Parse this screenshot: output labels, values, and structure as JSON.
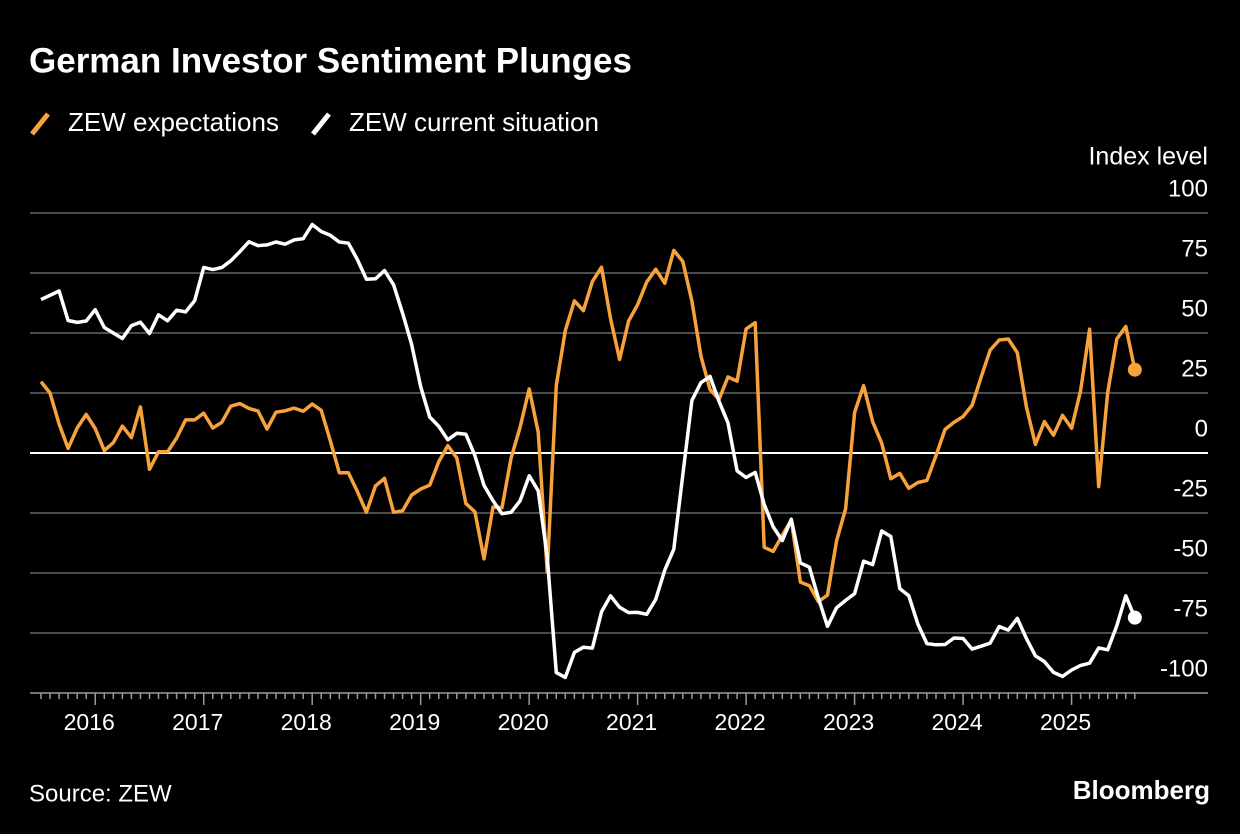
{
  "chart_data": {
    "type": "line",
    "title": "German Investor Sentiment Plunges",
    "ylabel": "Index level",
    "source": "Source: ZEW",
    "brand": "Bloomberg",
    "categories": [
      null,
      null,
      null,
      null,
      null,
      null,
      "2016",
      null,
      null,
      null,
      null,
      null,
      null,
      null,
      null,
      null,
      null,
      null,
      "2017",
      null,
      null,
      null,
      null,
      null,
      null,
      null,
      null,
      null,
      null,
      null,
      "2018",
      null,
      null,
      null,
      null,
      null,
      null,
      null,
      null,
      null,
      null,
      null,
      "2019",
      null,
      null,
      null,
      null,
      null,
      null,
      null,
      null,
      null,
      null,
      null,
      "2020",
      null,
      null,
      null,
      null,
      null,
      null,
      null,
      null,
      null,
      null,
      null,
      "2021",
      null,
      null,
      null,
      null,
      null,
      null,
      null,
      null,
      null,
      null,
      null,
      "2022",
      null,
      null,
      null,
      null,
      null,
      null,
      null,
      null,
      null,
      null,
      null,
      "2023",
      null,
      null,
      null,
      null,
      null,
      null,
      null,
      null,
      null,
      null,
      null,
      "2024",
      null,
      null,
      null,
      null,
      null,
      null,
      null,
      null,
      null,
      null,
      null,
      "2025",
      null,
      null,
      null,
      null,
      null,
      null,
      null
    ],
    "series": [
      {
        "name": "ZEW expectations",
        "color": "#f7a23a",
        "values": [
          29.7,
          25.0,
          12.1,
          1.9,
          10.4,
          16.1,
          10.2,
          1.0,
          4.3,
          11.2,
          6.4,
          19.2,
          -6.8,
          0.5,
          0.5,
          6.2,
          13.8,
          13.8,
          16.6,
          10.4,
          12.8,
          19.5,
          20.6,
          18.6,
          17.5,
          10.0,
          17.0,
          17.6,
          18.7,
          17.4,
          20.4,
          17.8,
          5.1,
          -8.2,
          -8.2,
          -16.1,
          -24.7,
          -13.7,
          -10.6,
          -24.7,
          -24.1,
          -17.5,
          -15.0,
          -13.4,
          -3.6,
          3.1,
          -2.1,
          -21.1,
          -24.5,
          -44.1,
          -22.5,
          -22.8,
          -2.1,
          10.7,
          26.7,
          8.7,
          -49.5,
          28.2,
          51.0,
          63.4,
          59.3,
          71.5,
          77.4,
          56.1,
          39.0,
          55.0,
          61.8,
          71.2,
          76.6,
          70.7,
          84.4,
          79.8,
          63.3,
          40.4,
          26.5,
          22.3,
          31.7,
          29.9,
          51.7,
          54.3,
          -39.3,
          -41.0,
          -34.3,
          -28.0,
          -53.8,
          -55.3,
          -61.9,
          -59.2,
          -36.7,
          -23.3,
          16.9,
          28.1,
          13.0,
          4.1,
          -10.7,
          -8.5,
          -14.7,
          -12.3,
          -11.4,
          -1.1,
          9.8,
          12.8,
          15.2,
          19.9,
          31.7,
          42.9,
          47.1,
          47.5,
          41.8,
          19.2,
          3.6,
          13.1,
          7.4,
          15.7,
          10.3,
          26.0,
          51.6,
          -14.0,
          25.2,
          47.5,
          52.7,
          34.7
        ]
      },
      {
        "name": "ZEW current situation",
        "color": "#ffffff",
        "values": [
          63.9,
          65.7,
          67.5,
          55.2,
          54.4,
          55.0,
          59.7,
          52.3,
          50.0,
          47.7,
          53.1,
          54.5,
          49.8,
          57.6,
          55.1,
          59.5,
          58.8,
          63.5,
          77.3,
          76.4,
          77.3,
          80.1,
          83.9,
          88.0,
          86.4,
          86.7,
          87.9,
          87.0,
          88.8,
          89.3,
          95.2,
          92.3,
          90.7,
          87.9,
          87.4,
          80.6,
          72.4,
          72.6,
          76.0,
          70.1,
          58.2,
          45.3,
          27.6,
          15.0,
          11.1,
          5.5,
          8.2,
          7.8,
          -1.1,
          -13.5,
          -19.9,
          -25.3,
          -24.7,
          -19.9,
          -9.5,
          -15.7,
          -43.1,
          -91.5,
          -93.5,
          -83.1,
          -80.9,
          -81.3,
          -66.2,
          -59.5,
          -64.3,
          -66.5,
          -66.4,
          -67.2,
          -61.0,
          -48.8,
          -40.1,
          -9.1,
          21.9,
          29.3,
          31.9,
          21.6,
          12.5,
          -7.4,
          -10.2,
          -8.1,
          -21.4,
          -30.8,
          -36.5,
          -27.6,
          -45.8,
          -47.6,
          -60.5,
          -72.2,
          -64.5,
          -61.4,
          -58.6,
          -45.1,
          -46.5,
          -32.5,
          -34.8,
          -56.5,
          -59.5,
          -71.3,
          -79.4,
          -79.9,
          -79.8,
          -77.1,
          -77.3,
          -81.7,
          -80.5,
          -79.2,
          -72.3,
          -73.8,
          -68.9,
          -77.3,
          -84.5,
          -86.9,
          -91.4,
          -93.1,
          -90.4,
          -88.5,
          -87.6,
          -81.2,
          -82.0,
          -72.0,
          -59.5,
          -68.6
        ]
      }
    ],
    "ylim": [
      -100,
      100
    ],
    "yticks": [
      -100,
      -75,
      -50,
      -25,
      0,
      25,
      50,
      75,
      100
    ],
    "grid": true
  }
}
